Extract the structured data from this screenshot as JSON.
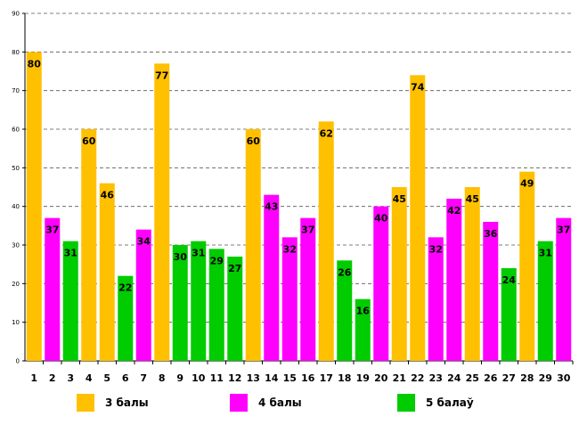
{
  "chart_data": {
    "type": "bar",
    "title": "",
    "xlabel": "",
    "ylabel": "",
    "ylim": [
      0,
      90
    ],
    "ytick_step": 10,
    "grid": "horizontal dashed",
    "categories": [
      "1",
      "2",
      "3",
      "4",
      "5",
      "6",
      "7",
      "8",
      "9",
      "10",
      "11",
      "12",
      "13",
      "14",
      "15",
      "16",
      "17",
      "18",
      "19",
      "20",
      "21",
      "22",
      "23",
      "24",
      "25",
      "26",
      "27",
      "28",
      "29",
      "30"
    ],
    "values": [
      80,
      37,
      31,
      60,
      46,
      22,
      34,
      77,
      30,
      31,
      29,
      27,
      60,
      43,
      32,
      37,
      62,
      26,
      16,
      40,
      45,
      74,
      32,
      42,
      45,
      36,
      24,
      49,
      31,
      37
    ],
    "series_index": [
      0,
      1,
      2,
      0,
      0,
      2,
      1,
      0,
      2,
      2,
      2,
      2,
      0,
      1,
      1,
      1,
      0,
      2,
      2,
      1,
      0,
      0,
      1,
      1,
      0,
      1,
      2,
      0,
      2,
      1
    ],
    "series": [
      {
        "name": "3 балы",
        "color": "#FFC000"
      },
      {
        "name": "4 балы",
        "color": "#FF00FF"
      },
      {
        "name": "5 балаў",
        "color": "#00CC00"
      }
    ],
    "legend_position": "bottom"
  }
}
